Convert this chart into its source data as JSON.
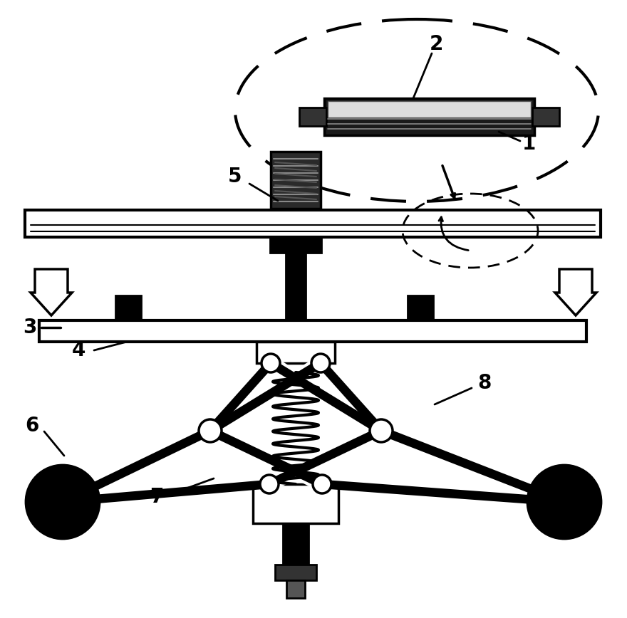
{
  "bg_color": "#ffffff",
  "line_color": "#000000",
  "fig_width": 8.8,
  "fig_height": 8.68,
  "dpi": 100,
  "label_fontsize": 20
}
